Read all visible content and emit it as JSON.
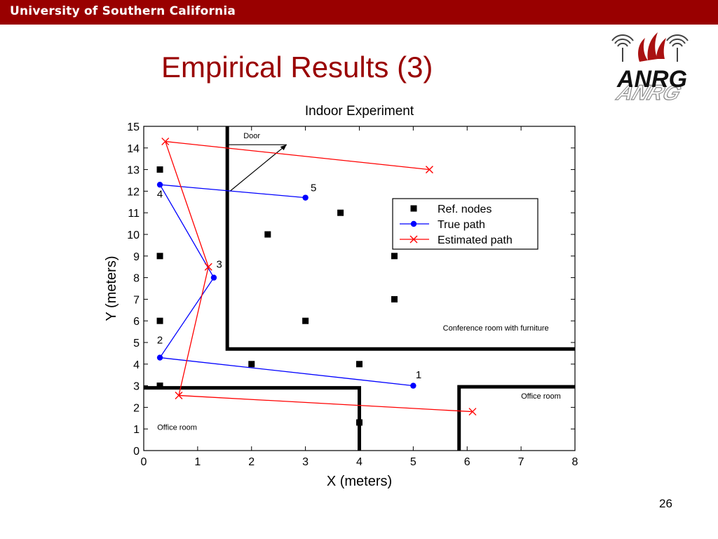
{
  "header": {
    "org_name": "University of Southern California"
  },
  "slide": {
    "title": "Empirical Results (3)",
    "page_number": "26"
  },
  "logo": {
    "text": "ANRG",
    "icon": "antenna-wave-icon",
    "accent": "#990000"
  },
  "colors": {
    "brand": "#990000",
    "true_path": "#0000ff",
    "estimated_path": "#ff0000",
    "nodes": "#000000"
  },
  "chart_data": {
    "type": "scatter",
    "title": "Indoor Experiment",
    "xlabel": "X (meters)",
    "ylabel": "Y (meters)",
    "xlim": [
      0,
      8
    ],
    "ylim": [
      0,
      15
    ],
    "xticks": [
      0,
      1,
      2,
      3,
      4,
      5,
      6,
      7,
      8
    ],
    "yticks": [
      0,
      1,
      2,
      3,
      4,
      5,
      6,
      7,
      8,
      9,
      10,
      11,
      12,
      13,
      14,
      15
    ],
    "grid": false,
    "legend_position": "upper-right",
    "series": [
      {
        "name": "Ref. nodes",
        "marker": "square",
        "color": "#000000",
        "points": [
          [
            0.3,
            13
          ],
          [
            0.3,
            9
          ],
          [
            0.3,
            6
          ],
          [
            0.3,
            3
          ],
          [
            2.3,
            10
          ],
          [
            3.65,
            11
          ],
          [
            4.65,
            9
          ],
          [
            4.65,
            7
          ],
          [
            3.0,
            6
          ],
          [
            2.0,
            4
          ],
          [
            4.0,
            4
          ],
          [
            4.0,
            1.3
          ]
        ]
      },
      {
        "name": "True path",
        "marker": "circle",
        "color": "#0000ff",
        "points": [
          [
            5.0,
            3.0
          ],
          [
            0.3,
            4.3
          ],
          [
            1.3,
            8.0
          ],
          [
            0.3,
            12.3
          ],
          [
            3.0,
            11.7
          ]
        ]
      },
      {
        "name": "Estimated path",
        "marker": "x",
        "color": "#ff0000",
        "points": [
          [
            6.1,
            1.8
          ],
          [
            0.65,
            2.55
          ],
          [
            1.2,
            8.5
          ],
          [
            0.4,
            14.3
          ],
          [
            5.3,
            13.0
          ]
        ]
      }
    ],
    "point_labels": [
      {
        "text": "1",
        "x": 5.1,
        "y": 3.35
      },
      {
        "text": "2",
        "x": 0.3,
        "y": 4.95
      },
      {
        "text": "3",
        "x": 1.4,
        "y": 8.45
      },
      {
        "text": "4",
        "x": 0.3,
        "y": 11.7
      },
      {
        "text": "5",
        "x": 3.15,
        "y": 12.0
      }
    ],
    "annotations": [
      {
        "text": "Door",
        "x": 1.85,
        "y": 14.45
      },
      {
        "text": "Conference room with furniture",
        "x": 5.55,
        "y": 5.55
      },
      {
        "text": "Office room",
        "x": 7.0,
        "y": 2.4
      },
      {
        "text": "Office room",
        "x": 0.25,
        "y": 0.95
      }
    ],
    "walls": [
      [
        [
          1.55,
          15
        ],
        [
          1.55,
          4.7
        ],
        [
          8,
          4.7
        ]
      ],
      [
        [
          0,
          2.9
        ],
        [
          4.0,
          2.9
        ],
        [
          4.0,
          0
        ]
      ],
      [
        [
          5.85,
          0
        ],
        [
          5.85,
          2.95
        ],
        [
          8,
          2.95
        ]
      ]
    ],
    "door": {
      "line": [
        [
          1.55,
          14.15
        ],
        [
          2.65,
          14.15
        ]
      ],
      "arrow_from": [
        1.6,
        12.0
      ],
      "arrow_to": [
        2.65,
        14.15
      ]
    }
  }
}
